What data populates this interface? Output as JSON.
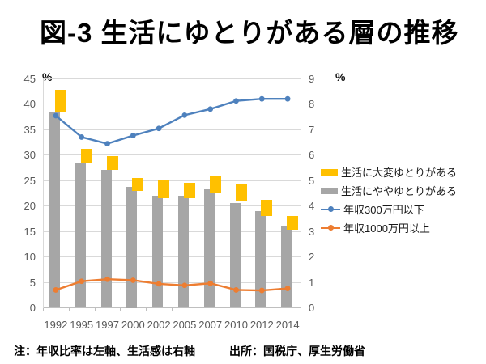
{
  "title": "図-3 生活にゆとりがある層の推移",
  "footnote": "注：年収比率は左軸、生活感は右軸",
  "source": "出所：国税庁、厚生労働省",
  "chart_data": {
    "type": "combo: stacked bar (right axis) + line (left axis)",
    "categories": [
      "1992",
      "1995",
      "1997",
      "2000",
      "2002",
      "2005",
      "2007",
      "2010",
      "2012",
      "2014"
    ],
    "left_axis": {
      "unit": "%",
      "min": 0,
      "max": 45,
      "ticks": [
        0,
        5,
        10,
        15,
        20,
        25,
        30,
        35,
        40,
        45
      ]
    },
    "right_axis": {
      "unit": "%",
      "min": 0,
      "max": 9,
      "ticks": [
        0,
        1,
        2,
        3,
        4,
        5,
        6,
        7,
        8,
        9
      ]
    },
    "grid": true,
    "legend_position": "right",
    "series": [
      {
        "name": "生活に大変ゆとりがある",
        "type": "bar-segment",
        "axis": "right",
        "color": "#FFC000",
        "from": [
          7.7,
          5.7,
          5.4,
          4.6,
          4.3,
          4.3,
          4.5,
          4.2,
          3.6,
          3.05
        ],
        "to": [
          8.55,
          6.25,
          5.95,
          5.1,
          5.0,
          4.9,
          5.15,
          4.85,
          4.25,
          3.6
        ],
        "values": [
          0.85,
          0.55,
          0.55,
          0.5,
          0.7,
          0.6,
          0.65,
          0.65,
          0.65,
          0.55
        ]
      },
      {
        "name": "生活にややゆとりがある",
        "type": "bar",
        "axis": "right",
        "color": "#A6A6A6",
        "values": [
          7.7,
          5.7,
          5.4,
          4.75,
          4.4,
          4.4,
          4.65,
          4.1,
          3.8,
          3.2
        ]
      },
      {
        "name": "年収300万円以下",
        "type": "line",
        "axis": "left",
        "color": "#4E81BD",
        "values": [
          37.7,
          33.5,
          32.2,
          33.8,
          35.2,
          37.8,
          39.0,
          40.6,
          41.0,
          41.0
        ]
      },
      {
        "name": "年収1000万円以上",
        "type": "line",
        "axis": "left",
        "color": "#ED7D31",
        "values": [
          3.5,
          5.2,
          5.6,
          5.4,
          4.7,
          4.4,
          4.8,
          3.5,
          3.4,
          3.8
        ]
      }
    ]
  }
}
